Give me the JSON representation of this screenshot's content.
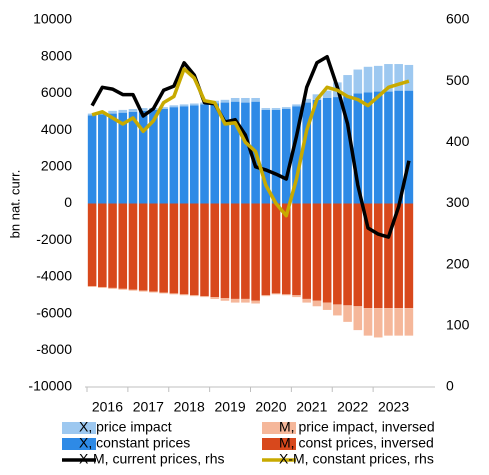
{
  "chart_data": {
    "type": "bar",
    "stacked": true,
    "ylabel": "bn nat. curr.",
    "categories": [
      "2016",
      null,
      null,
      null,
      "2017",
      null,
      null,
      null,
      "2018",
      null,
      null,
      null,
      "2019",
      null,
      null,
      null,
      "2020",
      null,
      null,
      null,
      "2021",
      null,
      null,
      null,
      "2022",
      null,
      null,
      null,
      "2023",
      null,
      null,
      null
    ],
    "ylim": [
      -10000,
      10000
    ],
    "yticks": [
      -10000,
      -8000,
      -6000,
      -4000,
      -2000,
      0,
      2000,
      4000,
      6000,
      8000,
      10000
    ],
    "y2lim": [
      0,
      600
    ],
    "y2ticks": [
      0,
      100,
      200,
      300,
      400,
      500,
      600
    ],
    "series": [
      {
        "name": "X, constant prices",
        "type": "bar",
        "color": "#2e8ae6",
        "values": [
          4800,
          4850,
          4900,
          4950,
          5000,
          5050,
          5100,
          5150,
          5250,
          5300,
          5350,
          5400,
          5450,
          5500,
          5550,
          5500,
          5550,
          5100,
          5100,
          5150,
          5300,
          5500,
          5650,
          5750,
          5800,
          5900,
          6000,
          6050,
          6100,
          6100,
          6150,
          6150
        ]
      },
      {
        "name": "X, price impact",
        "type": "bar",
        "color": "#9dc8f0",
        "values": [
          100,
          100,
          150,
          150,
          150,
          150,
          100,
          100,
          100,
          100,
          100,
          100,
          150,
          150,
          200,
          250,
          200,
          100,
          100,
          100,
          100,
          200,
          300,
          400,
          800,
          1100,
          1300,
          1400,
          1400,
          1500,
          1450,
          1400
        ]
      },
      {
        "name": "M, const prices, inversed",
        "type": "bar",
        "color": "#d8481c",
        "values": [
          -4500,
          -4550,
          -4600,
          -4650,
          -4700,
          -4750,
          -4800,
          -4850,
          -4900,
          -4950,
          -5000,
          -5050,
          -5100,
          -5150,
          -5200,
          -5200,
          -5300,
          -5000,
          -4900,
          -4950,
          -5000,
          -5200,
          -5300,
          -5400,
          -5500,
          -5550,
          -5600,
          -5700,
          -5700,
          -5700,
          -5700,
          -5700
        ]
      },
      {
        "name": "M, price impact, inversed",
        "type": "bar",
        "color": "#f5b79a",
        "values": [
          -50,
          -50,
          -50,
          -50,
          -50,
          -50,
          -50,
          -50,
          -50,
          -50,
          -50,
          -50,
          -100,
          -150,
          -200,
          -200,
          -150,
          -50,
          -50,
          -50,
          -100,
          -200,
          -300,
          -400,
          -600,
          -900,
          -1300,
          -1500,
          -1600,
          -1500,
          -1500,
          -1500
        ]
      },
      {
        "name": "X-M, current prices, rhs",
        "type": "line",
        "axis": "y2",
        "color": "#000000",
        "values": [
          460,
          490,
          487,
          478,
          478,
          443,
          455,
          485,
          492,
          530,
          510,
          465,
          463,
          433,
          437,
          412,
          360,
          355,
          348,
          340,
          410,
          490,
          530,
          540,
          490,
          430,
          330,
          260,
          250,
          245,
          295,
          370
        ]
      },
      {
        "name": "X-M, constant prices, rhs",
        "type": "line",
        "axis": "y2",
        "color": "#c8aa00",
        "values": [
          445,
          450,
          440,
          430,
          440,
          418,
          435,
          465,
          475,
          520,
          505,
          468,
          465,
          430,
          432,
          400,
          385,
          330,
          300,
          280,
          340,
          420,
          470,
          490,
          485,
          475,
          470,
          460,
          475,
          490,
          495,
          500
        ]
      }
    ]
  }
}
